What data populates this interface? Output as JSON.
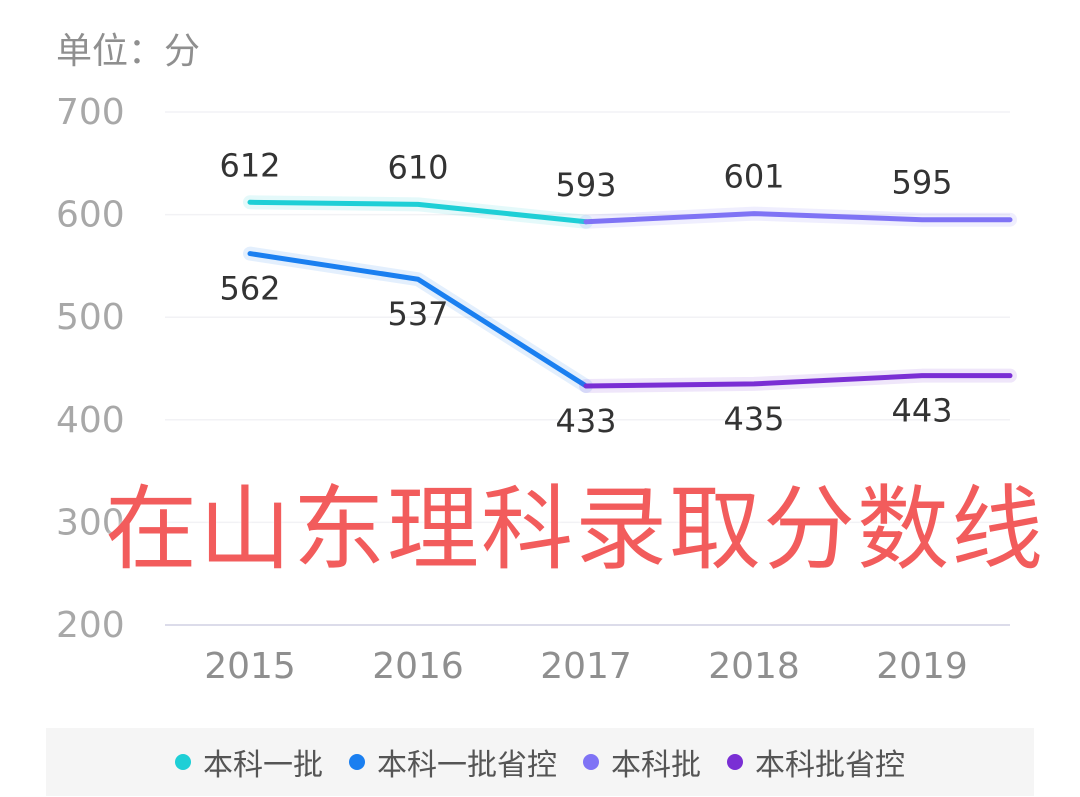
{
  "unit_label": "单位：分",
  "overlay_title": "在山东理科录取分数线",
  "chart_data": {
    "type": "line",
    "categories": [
      "2015",
      "2016",
      "2017",
      "2018",
      "2019"
    ],
    "ylim": [
      200,
      700
    ],
    "yticks": [
      700,
      600,
      500,
      400,
      300,
      200
    ],
    "grid": true,
    "legend_position": "bottom",
    "series": [
      {
        "name": "本科一批",
        "color": "#1ecfd6",
        "values": [
          612,
          610,
          593,
          null,
          null
        ]
      },
      {
        "name": "本科一批省控",
        "color": "#1a7ff0",
        "values": [
          562,
          537,
          433,
          null,
          null
        ]
      },
      {
        "name": "本科批",
        "color": "#7f73f5",
        "values": [
          null,
          null,
          593,
          601,
          595
        ]
      },
      {
        "name": "本科批省控",
        "color": "#7a2fd4",
        "values": [
          null,
          null,
          433,
          435,
          443
        ]
      }
    ],
    "data_labels": [
      {
        "category": "2015",
        "value": 612,
        "position": "above"
      },
      {
        "category": "2016",
        "value": 610,
        "position": "above"
      },
      {
        "category": "2017",
        "value": 593,
        "position": "above"
      },
      {
        "category": "2018",
        "value": 601,
        "position": "above"
      },
      {
        "category": "2019",
        "value": 595,
        "position": "above"
      },
      {
        "category": "2015",
        "value": 562,
        "position": "below"
      },
      {
        "category": "2016",
        "value": 537,
        "position": "below"
      },
      {
        "category": "2017",
        "value": 433,
        "position": "below"
      },
      {
        "category": "2018",
        "value": 435,
        "position": "below"
      },
      {
        "category": "2019",
        "value": 443,
        "position": "below"
      }
    ]
  }
}
